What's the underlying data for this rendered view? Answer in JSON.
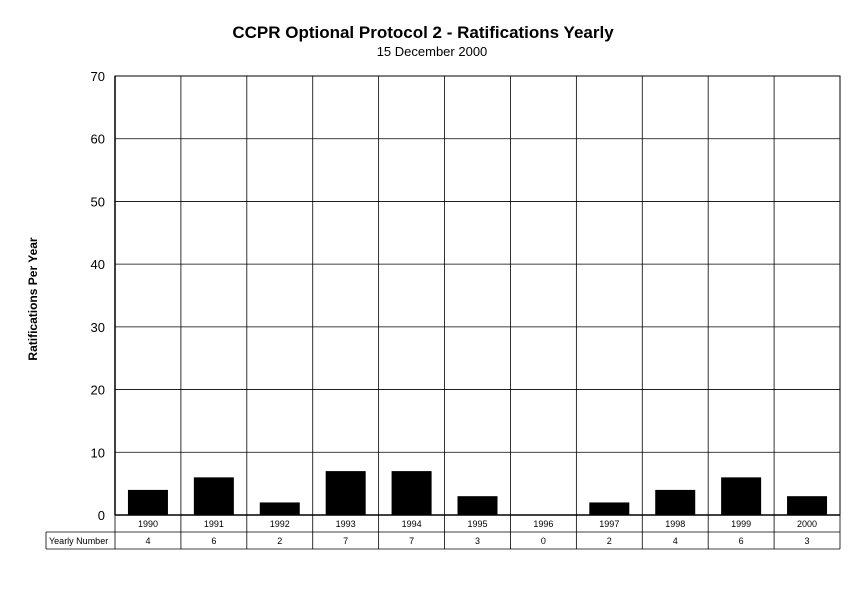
{
  "chart_data": {
    "type": "bar",
    "title": "CCPR Optional Protocol 2 - Ratifications Yearly",
    "subtitle": "15 December 2000",
    "ylabel": "Ratifications Per Year",
    "xlabel": "",
    "categories": [
      "1990",
      "1991",
      "1992",
      "1993",
      "1994",
      "1995",
      "1996",
      "1997",
      "1998",
      "1999",
      "2000"
    ],
    "values": [
      4,
      6,
      2,
      7,
      7,
      3,
      0,
      2,
      4,
      6,
      3
    ],
    "ylim": [
      0,
      70
    ],
    "yticks": [
      0,
      10,
      20,
      30,
      40,
      50,
      60,
      70
    ],
    "grid": true,
    "bar_color": "#000000",
    "data_table": {
      "row_label": "Yearly Number",
      "values": [
        "4",
        "6",
        "2",
        "7",
        "7",
        "3",
        "0",
        "2",
        "4",
        "6",
        "3"
      ]
    }
  }
}
